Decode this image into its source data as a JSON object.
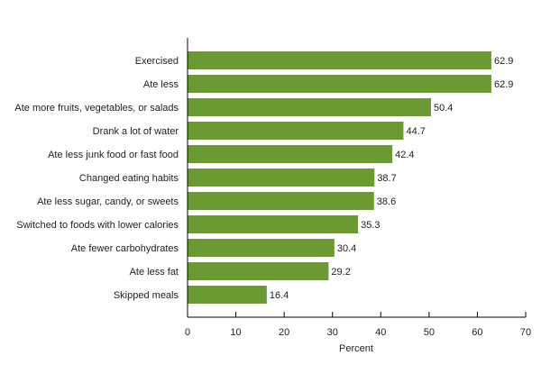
{
  "chart_data": {
    "type": "bar",
    "orientation": "horizontal",
    "title": "",
    "xlabel": "Percent",
    "ylabel": "",
    "xlim": [
      0,
      70
    ],
    "xticks": [
      0,
      10,
      20,
      30,
      40,
      50,
      60,
      70
    ],
    "grid": false,
    "bar_color": "#6b9a33",
    "categories": [
      "Exercised",
      "Ate less",
      "Ate more fruits, vegetables, or salads",
      "Drank a lot of water",
      "Ate less junk food or fast food",
      "Changed eating habits",
      "Ate less sugar, candy, or sweets",
      "Switched to foods with lower calories",
      "Ate fewer carbohydrates",
      "Ate less fat",
      "Skipped meals"
    ],
    "values": [
      62.9,
      62.9,
      50.4,
      44.7,
      42.4,
      38.7,
      38.6,
      35.3,
      30.4,
      29.2,
      16.4
    ]
  }
}
